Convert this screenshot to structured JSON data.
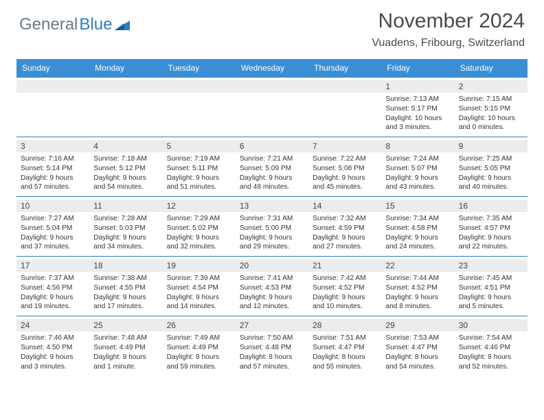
{
  "brand": {
    "part1": "General",
    "part2": "Blue"
  },
  "title": "November 2024",
  "location": "Vuadens, Fribourg, Switzerland",
  "colors": {
    "header_bg": "#3a8fd4",
    "row_border": "#2b7ec0",
    "daynum_bg": "#ebeced",
    "text": "#333333",
    "logo_gray": "#6a7a85",
    "logo_blue": "#2b7ec0"
  },
  "dayNames": [
    "Sunday",
    "Monday",
    "Tuesday",
    "Wednesday",
    "Thursday",
    "Friday",
    "Saturday"
  ],
  "weeks": [
    [
      {
        "n": "",
        "sunrise": "",
        "sunset": "",
        "daylight": ""
      },
      {
        "n": "",
        "sunrise": "",
        "sunset": "",
        "daylight": ""
      },
      {
        "n": "",
        "sunrise": "",
        "sunset": "",
        "daylight": ""
      },
      {
        "n": "",
        "sunrise": "",
        "sunset": "",
        "daylight": ""
      },
      {
        "n": "",
        "sunrise": "",
        "sunset": "",
        "daylight": ""
      },
      {
        "n": "1",
        "sunrise": "Sunrise: 7:13 AM",
        "sunset": "Sunset: 5:17 PM",
        "daylight": "Daylight: 10 hours and 3 minutes."
      },
      {
        "n": "2",
        "sunrise": "Sunrise: 7:15 AM",
        "sunset": "Sunset: 5:15 PM",
        "daylight": "Daylight: 10 hours and 0 minutes."
      }
    ],
    [
      {
        "n": "3",
        "sunrise": "Sunrise: 7:16 AM",
        "sunset": "Sunset: 5:14 PM",
        "daylight": "Daylight: 9 hours and 57 minutes."
      },
      {
        "n": "4",
        "sunrise": "Sunrise: 7:18 AM",
        "sunset": "Sunset: 5:12 PM",
        "daylight": "Daylight: 9 hours and 54 minutes."
      },
      {
        "n": "5",
        "sunrise": "Sunrise: 7:19 AM",
        "sunset": "Sunset: 5:11 PM",
        "daylight": "Daylight: 9 hours and 51 minutes."
      },
      {
        "n": "6",
        "sunrise": "Sunrise: 7:21 AM",
        "sunset": "Sunset: 5:09 PM",
        "daylight": "Daylight: 9 hours and 48 minutes."
      },
      {
        "n": "7",
        "sunrise": "Sunrise: 7:22 AM",
        "sunset": "Sunset: 5:08 PM",
        "daylight": "Daylight: 9 hours and 45 minutes."
      },
      {
        "n": "8",
        "sunrise": "Sunrise: 7:24 AM",
        "sunset": "Sunset: 5:07 PM",
        "daylight": "Daylight: 9 hours and 43 minutes."
      },
      {
        "n": "9",
        "sunrise": "Sunrise: 7:25 AM",
        "sunset": "Sunset: 5:05 PM",
        "daylight": "Daylight: 9 hours and 40 minutes."
      }
    ],
    [
      {
        "n": "10",
        "sunrise": "Sunrise: 7:27 AM",
        "sunset": "Sunset: 5:04 PM",
        "daylight": "Daylight: 9 hours and 37 minutes."
      },
      {
        "n": "11",
        "sunrise": "Sunrise: 7:28 AM",
        "sunset": "Sunset: 5:03 PM",
        "daylight": "Daylight: 9 hours and 34 minutes."
      },
      {
        "n": "12",
        "sunrise": "Sunrise: 7:29 AM",
        "sunset": "Sunset: 5:02 PM",
        "daylight": "Daylight: 9 hours and 32 minutes."
      },
      {
        "n": "13",
        "sunrise": "Sunrise: 7:31 AM",
        "sunset": "Sunset: 5:00 PM",
        "daylight": "Daylight: 9 hours and 29 minutes."
      },
      {
        "n": "14",
        "sunrise": "Sunrise: 7:32 AM",
        "sunset": "Sunset: 4:59 PM",
        "daylight": "Daylight: 9 hours and 27 minutes."
      },
      {
        "n": "15",
        "sunrise": "Sunrise: 7:34 AM",
        "sunset": "Sunset: 4:58 PM",
        "daylight": "Daylight: 9 hours and 24 minutes."
      },
      {
        "n": "16",
        "sunrise": "Sunrise: 7:35 AM",
        "sunset": "Sunset: 4:57 PM",
        "daylight": "Daylight: 9 hours and 22 minutes."
      }
    ],
    [
      {
        "n": "17",
        "sunrise": "Sunrise: 7:37 AM",
        "sunset": "Sunset: 4:56 PM",
        "daylight": "Daylight: 9 hours and 19 minutes."
      },
      {
        "n": "18",
        "sunrise": "Sunrise: 7:38 AM",
        "sunset": "Sunset: 4:55 PM",
        "daylight": "Daylight: 9 hours and 17 minutes."
      },
      {
        "n": "19",
        "sunrise": "Sunrise: 7:39 AM",
        "sunset": "Sunset: 4:54 PM",
        "daylight": "Daylight: 9 hours and 14 minutes."
      },
      {
        "n": "20",
        "sunrise": "Sunrise: 7:41 AM",
        "sunset": "Sunset: 4:53 PM",
        "daylight": "Daylight: 9 hours and 12 minutes."
      },
      {
        "n": "21",
        "sunrise": "Sunrise: 7:42 AM",
        "sunset": "Sunset: 4:52 PM",
        "daylight": "Daylight: 9 hours and 10 minutes."
      },
      {
        "n": "22",
        "sunrise": "Sunrise: 7:44 AM",
        "sunset": "Sunset: 4:52 PM",
        "daylight": "Daylight: 9 hours and 8 minutes."
      },
      {
        "n": "23",
        "sunrise": "Sunrise: 7:45 AM",
        "sunset": "Sunset: 4:51 PM",
        "daylight": "Daylight: 9 hours and 5 minutes."
      }
    ],
    [
      {
        "n": "24",
        "sunrise": "Sunrise: 7:46 AM",
        "sunset": "Sunset: 4:50 PM",
        "daylight": "Daylight: 9 hours and 3 minutes."
      },
      {
        "n": "25",
        "sunrise": "Sunrise: 7:48 AM",
        "sunset": "Sunset: 4:49 PM",
        "daylight": "Daylight: 9 hours and 1 minute."
      },
      {
        "n": "26",
        "sunrise": "Sunrise: 7:49 AM",
        "sunset": "Sunset: 4:49 PM",
        "daylight": "Daylight: 8 hours and 59 minutes."
      },
      {
        "n": "27",
        "sunrise": "Sunrise: 7:50 AM",
        "sunset": "Sunset: 4:48 PM",
        "daylight": "Daylight: 8 hours and 57 minutes."
      },
      {
        "n": "28",
        "sunrise": "Sunrise: 7:51 AM",
        "sunset": "Sunset: 4:47 PM",
        "daylight": "Daylight: 8 hours and 55 minutes."
      },
      {
        "n": "29",
        "sunrise": "Sunrise: 7:53 AM",
        "sunset": "Sunset: 4:47 PM",
        "daylight": "Daylight: 8 hours and 54 minutes."
      },
      {
        "n": "30",
        "sunrise": "Sunrise: 7:54 AM",
        "sunset": "Sunset: 4:46 PM",
        "daylight": "Daylight: 8 hours and 52 minutes."
      }
    ]
  ]
}
